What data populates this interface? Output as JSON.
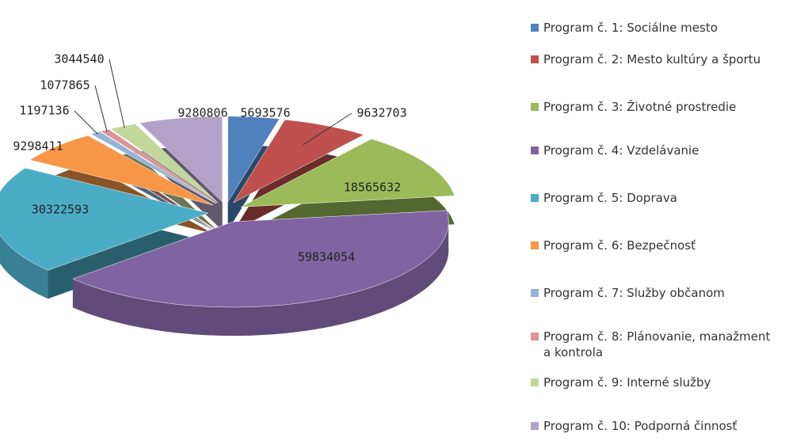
{
  "chart_data": {
    "type": "pie",
    "categories": [
      "Program č. 1: Sociálne mesto",
      "Program č. 2: Mesto kultúry a športu",
      "Program č. 3: Životné prostredie",
      "Program č. 4: Vzdelávanie",
      "Program č. 5: Doprava",
      "Program č. 6: Bezpečnosť",
      "Program č. 7: Služby občanom",
      "Program č. 8: Plánovanie, manažment a kontrola",
      "Program č. 9: Interné služby",
      "Program č. 10: Podporná činnosť"
    ],
    "values": [
      5693576,
      9632703,
      18565632,
      59834054,
      30322593,
      9298411,
      1197136,
      1077865,
      3044540,
      9280806
    ],
    "colors": [
      "#4f81bd",
      "#c0504d",
      "#9bbb59",
      "#8064a2",
      "#4bacc6",
      "#f79646",
      "#95b3d7",
      "#d99694",
      "#c3d69b",
      "#b3a2c7"
    ],
    "legend": "right"
  }
}
